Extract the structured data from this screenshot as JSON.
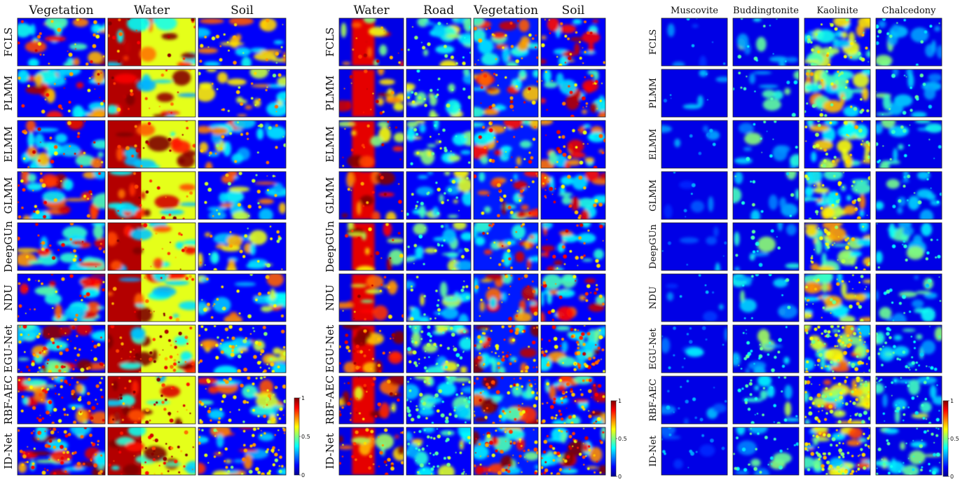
{
  "colors": {
    "background": "#00008f",
    "colormap": "jet"
  },
  "panels": [
    {
      "columns": [
        "Vegetation",
        "Water",
        "Soil"
      ],
      "methods": [
        "FCLS",
        "PLMM",
        "ELMM",
        "GLMM",
        "DeepGUn",
        "NDU",
        "EGU-Net",
        "RBF-AEC",
        "ID-Net"
      ],
      "colorbar": {
        "ticks": [
          "1",
          "0.5",
          "0"
        ]
      }
    },
    {
      "columns": [
        "Water",
        "Road",
        "Vegetation",
        "Soil"
      ],
      "methods": [
        "FCLS",
        "PLMM",
        "ELMM",
        "GLMM",
        "DeepGUn",
        "NDU",
        "EGU-Net",
        "RBF-AEC",
        "ID-Net"
      ],
      "colorbar": {
        "ticks": [
          "1",
          "0.5",
          "0"
        ]
      }
    },
    {
      "columns": [
        "Muscovite",
        "Buddingtonite",
        "Kaolinite",
        "Chalcedony"
      ],
      "methods": [
        "FCLS",
        "PLMM",
        "ELMM",
        "GLMM",
        "DeepGUn",
        "NDU",
        "EGU-Net",
        "RBF-AEC",
        "ID-Net"
      ],
      "colorbar": {
        "ticks": [
          "1",
          "0.5",
          "0"
        ]
      }
    }
  ]
}
